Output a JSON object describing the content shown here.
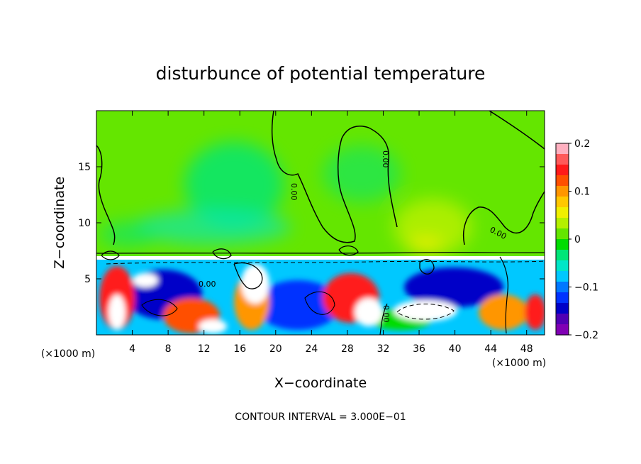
{
  "chart_data": {
    "type": "heatmap",
    "title": "disturbunce of potential temperature",
    "xlabel": "X−coordinate",
    "ylabel": "Z−coordinate",
    "x_unit": "(×1000 m)",
    "y_unit": "(×1000 m)",
    "xlim": [
      0,
      50
    ],
    "ylim": [
      0,
      20
    ],
    "x_ticks": [
      "4",
      "8",
      "12",
      "16",
      "20",
      "24",
      "28",
      "32",
      "36",
      "40",
      "44",
      "48"
    ],
    "y_ticks": [
      "5",
      "10",
      "15"
    ],
    "colorbar": {
      "range": [
        -0.2,
        0.2
      ],
      "tick_labels": [
        "0.2",
        "0.1",
        "0",
        "−0.1",
        "−0.2"
      ],
      "tick_values": [
        0.2,
        0.1,
        0,
        -0.1,
        -0.2
      ],
      "colors": [
        "#ffb0c0",
        "#ff5a5a",
        "#ff1a1a",
        "#ff5000",
        "#ff9600",
        "#ffc800",
        "#f0f000",
        "#b4f000",
        "#64e600",
        "#00dc00",
        "#00e678",
        "#00e6c8",
        "#00c8ff",
        "#0078ff",
        "#0032ff",
        "#0000c8",
        "#5000b4",
        "#8000b4"
      ]
    },
    "contour_labels": [
      "0.00",
      "0.00",
      "0.00",
      "0.00",
      "0.00"
    ],
    "footer": "CONTOUR INTERVAL = 3.000E−01",
    "legend": "colorbar-right",
    "grid": false
  }
}
